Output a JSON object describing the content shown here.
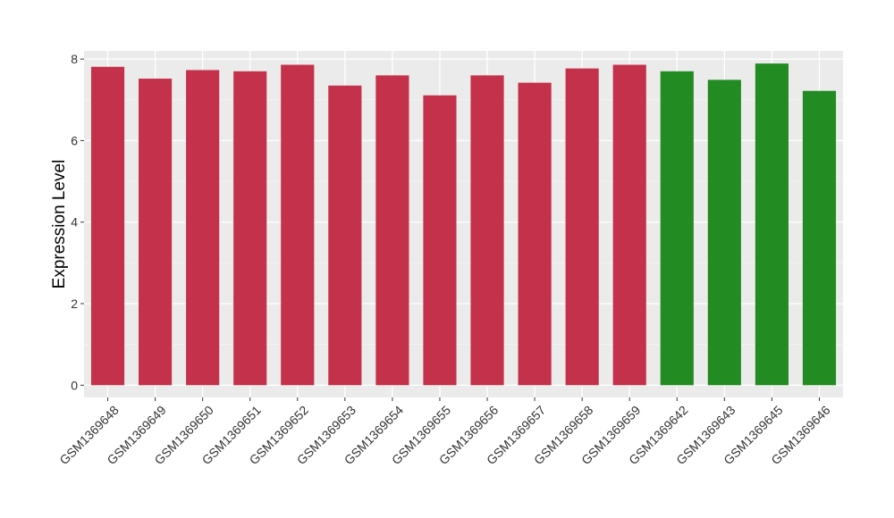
{
  "chart_data": {
    "type": "bar",
    "title": "",
    "xlabel": "",
    "ylabel": "Expression Level",
    "ylim": [
      -0.3,
      8.2
    ],
    "yticks": [
      0,
      2,
      4,
      6,
      8
    ],
    "grid": true,
    "categories": [
      "GSM1369648",
      "GSM1369649",
      "GSM1369650",
      "GSM1369651",
      "GSM1369652",
      "GSM1369653",
      "GSM1369654",
      "GSM1369655",
      "GSM1369656",
      "GSM1369657",
      "GSM1369658",
      "GSM1369659",
      "GSM1369642",
      "GSM1369643",
      "GSM1369645",
      "GSM1369646"
    ],
    "values": [
      7.81,
      7.52,
      7.73,
      7.7,
      7.86,
      7.35,
      7.6,
      7.11,
      7.6,
      7.42,
      7.77,
      7.86,
      7.7,
      7.49,
      7.89,
      7.22
    ],
    "colors": [
      "#c4314b",
      "#c4314b",
      "#c4314b",
      "#c4314b",
      "#c4314b",
      "#c4314b",
      "#c4314b",
      "#c4314b",
      "#c4314b",
      "#c4314b",
      "#c4314b",
      "#c4314b",
      "#228b22",
      "#228b22",
      "#228b22",
      "#228b22"
    ]
  }
}
